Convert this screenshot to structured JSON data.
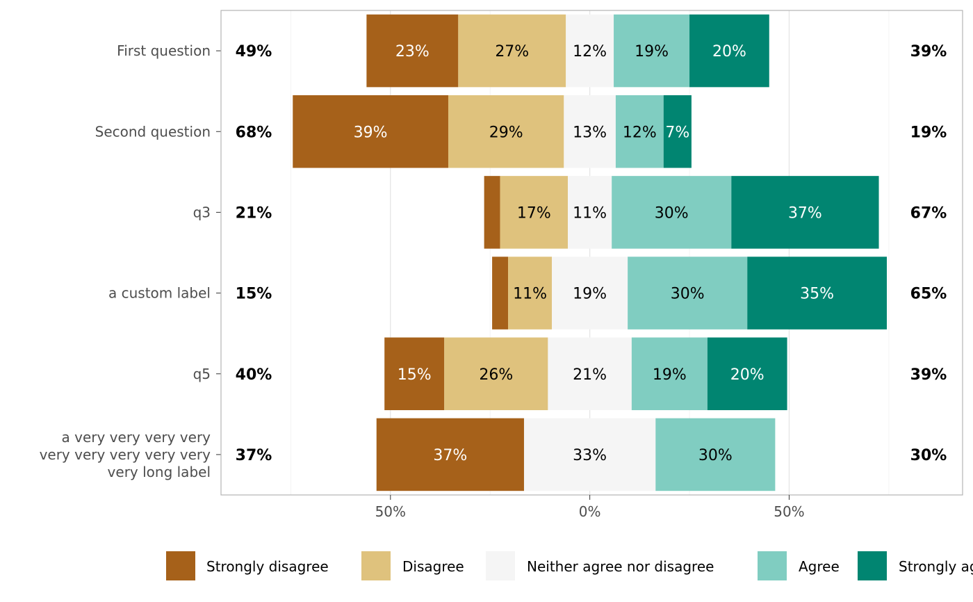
{
  "chart_data": {
    "type": "bar",
    "orientation": "horizontal",
    "stacked": "diverging",
    "categories": [
      "First question",
      "Second question",
      "q3",
      "a custom label",
      "q5",
      "a very very very very very very very very very very very long label"
    ],
    "category_lines": [
      [
        "First question"
      ],
      [
        "Second question"
      ],
      [
        "q3"
      ],
      [
        "a custom label"
      ],
      [
        "q5"
      ],
      [
        "a very very very very",
        "very very very very very",
        "very long label"
      ]
    ],
    "series": [
      {
        "name": "Strongly disagree",
        "color": "#A6611A",
        "values": [
          23,
          39,
          4,
          4,
          15,
          37
        ]
      },
      {
        "name": "Disagree",
        "color": "#DFC27D",
        "values": [
          27,
          29,
          17,
          11,
          26,
          0
        ]
      },
      {
        "name": "Neither agree nor disagree",
        "color": "#F5F5F5",
        "values": [
          12,
          13,
          11,
          19,
          21,
          33
        ]
      },
      {
        "name": "Agree",
        "color": "#80CDC1",
        "values": [
          19,
          12,
          30,
          30,
          19,
          30
        ]
      },
      {
        "name": "Strongly agree",
        "color": "#018571",
        "values": [
          20,
          7,
          37,
          35,
          20,
          0
        ]
      }
    ],
    "bar_labels": [
      [
        "23%",
        "27%",
        "12%",
        "19%",
        "20%"
      ],
      [
        "39%",
        "29%",
        "13%",
        "12%",
        "7%"
      ],
      [
        "",
        "17%",
        "11%",
        "30%",
        "37%"
      ],
      [
        "",
        "11%",
        "19%",
        "30%",
        "35%"
      ],
      [
        "15%",
        "26%",
        "21%",
        "19%",
        "20%"
      ],
      [
        "37%",
        "",
        "33%",
        "30%",
        ""
      ]
    ],
    "left_totals": [
      "49%",
      "68%",
      "21%",
      "15%",
      "40%",
      "37%"
    ],
    "right_totals": [
      "39%",
      "19%",
      "67%",
      "65%",
      "39%",
      "30%"
    ],
    "x_ticks": [
      -50,
      0,
      50
    ],
    "x_tick_labels": [
      "50%",
      "0%",
      "50%"
    ],
    "xlim": [
      -92.5,
      93.5
    ],
    "grid": true,
    "legend_position": "bottom",
    "legend": [
      "Strongly disagree",
      "Disagree",
      "Neither agree nor disagree",
      "Agree",
      "Strongly agree"
    ]
  }
}
